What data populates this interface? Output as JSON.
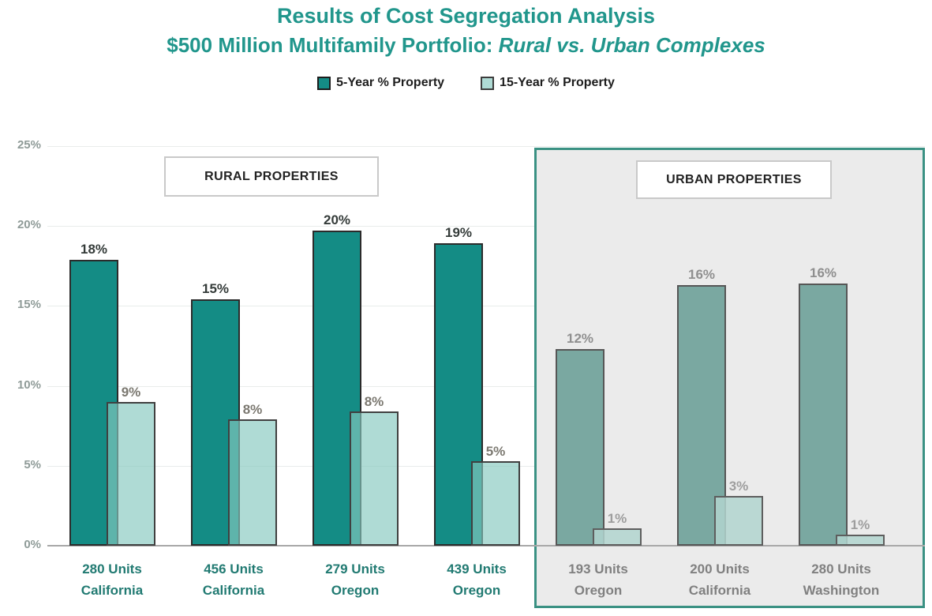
{
  "title": {
    "line1": "Results of Cost Segregation Analysis",
    "line2_prefix": "$500 Million Multifamily Portfolio: ",
    "line2_italic": "Rural vs. Urban Complexes"
  },
  "legend": {
    "items": [
      {
        "label": "5-Year % Property"
      },
      {
        "label": "15-Year % Property"
      }
    ]
  },
  "sections": [
    {
      "title": "RURAL PROPERTIES"
    },
    {
      "title": "URBAN PROPERTIES"
    }
  ],
  "y_axis": {
    "ticks": [
      {
        "label": "25%",
        "value": 25
      },
      {
        "label": "20%",
        "value": 20
      },
      {
        "label": "15%",
        "value": 15
      },
      {
        "label": "10%",
        "value": 10
      },
      {
        "label": "5%",
        "value": 5
      },
      {
        "label": "0%",
        "value": 0
      }
    ]
  },
  "chart_data": {
    "type": "bar",
    "title": "Results of Cost Segregation Analysis — $500 Million Multifamily Portfolio: Rural vs. Urban Complexes",
    "series": [
      "5-Year % Property",
      "15-Year % Property"
    ],
    "ylim": [
      0,
      25
    ],
    "y_unit": "%",
    "legend_position": "top",
    "grid": "horizontal-faint",
    "groups": [
      {
        "section": "rural",
        "category_line1": "280 Units",
        "category_line2": "California",
        "values": {
          "5yr": 17.9,
          "15yr": 9.0
        },
        "labels": {
          "5yr": "18%",
          "15yr": "9%"
        }
      },
      {
        "section": "rural",
        "category_line1": "456 Units",
        "category_line2": "California",
        "values": {
          "5yr": 15.4,
          "15yr": 7.9
        },
        "labels": {
          "5yr": "15%",
          "15yr": "8%"
        }
      },
      {
        "section": "rural",
        "category_line1": "279 Units",
        "category_line2": "Oregon",
        "values": {
          "5yr": 19.7,
          "15yr": 8.4
        },
        "labels": {
          "5yr": "20%",
          "15yr": "8%"
        }
      },
      {
        "section": "rural",
        "category_line1": "439 Units",
        "category_line2": "Oregon",
        "values": {
          "5yr": 18.9,
          "15yr": 5.3
        },
        "labels": {
          "5yr": "19%",
          "15yr": "5%"
        }
      },
      {
        "section": "urban",
        "category_line1": "193 Units",
        "category_line2": "Oregon",
        "values": {
          "5yr": 12.3,
          "15yr": 1.1
        },
        "labels": {
          "5yr": "12%",
          "15yr": "1%"
        }
      },
      {
        "section": "urban",
        "category_line1": "200 Units",
        "category_line2": "California",
        "values": {
          "5yr": 16.3,
          "15yr": 3.1
        },
        "labels": {
          "5yr": "16%",
          "15yr": "3%"
        }
      },
      {
        "section": "urban",
        "category_line1": "280 Units",
        "category_line2": "Washington",
        "values": {
          "5yr": 16.4,
          "15yr": 0.7
        },
        "labels": {
          "5yr": "16%",
          "15yr": "1%"
        }
      }
    ]
  },
  "colors": {
    "title_teal": "#21968c",
    "legend_text": "#1d1d1d",
    "series5": "#148c85",
    "series15": "rgba(134,200,192,0.66)",
    "series5_muted": "#7aa8a1",
    "series15_muted": "rgba(178,213,207,0.85)",
    "label5": "#343b39",
    "label15": "#7b7870",
    "label5_muted": "#8f8f8f",
    "label15_muted": "#9e9e9e",
    "xlabel_rural": "#217a72",
    "xlabel_urban": "#808080",
    "ytick": "#8f9b98",
    "gridline": "#e9eceb",
    "axis": "#a8a8a8",
    "panel_bg": "#ebebeb",
    "panel_border": "#3a9183",
    "box_border": "#c9c9c9",
    "box_text": "#222222"
  }
}
